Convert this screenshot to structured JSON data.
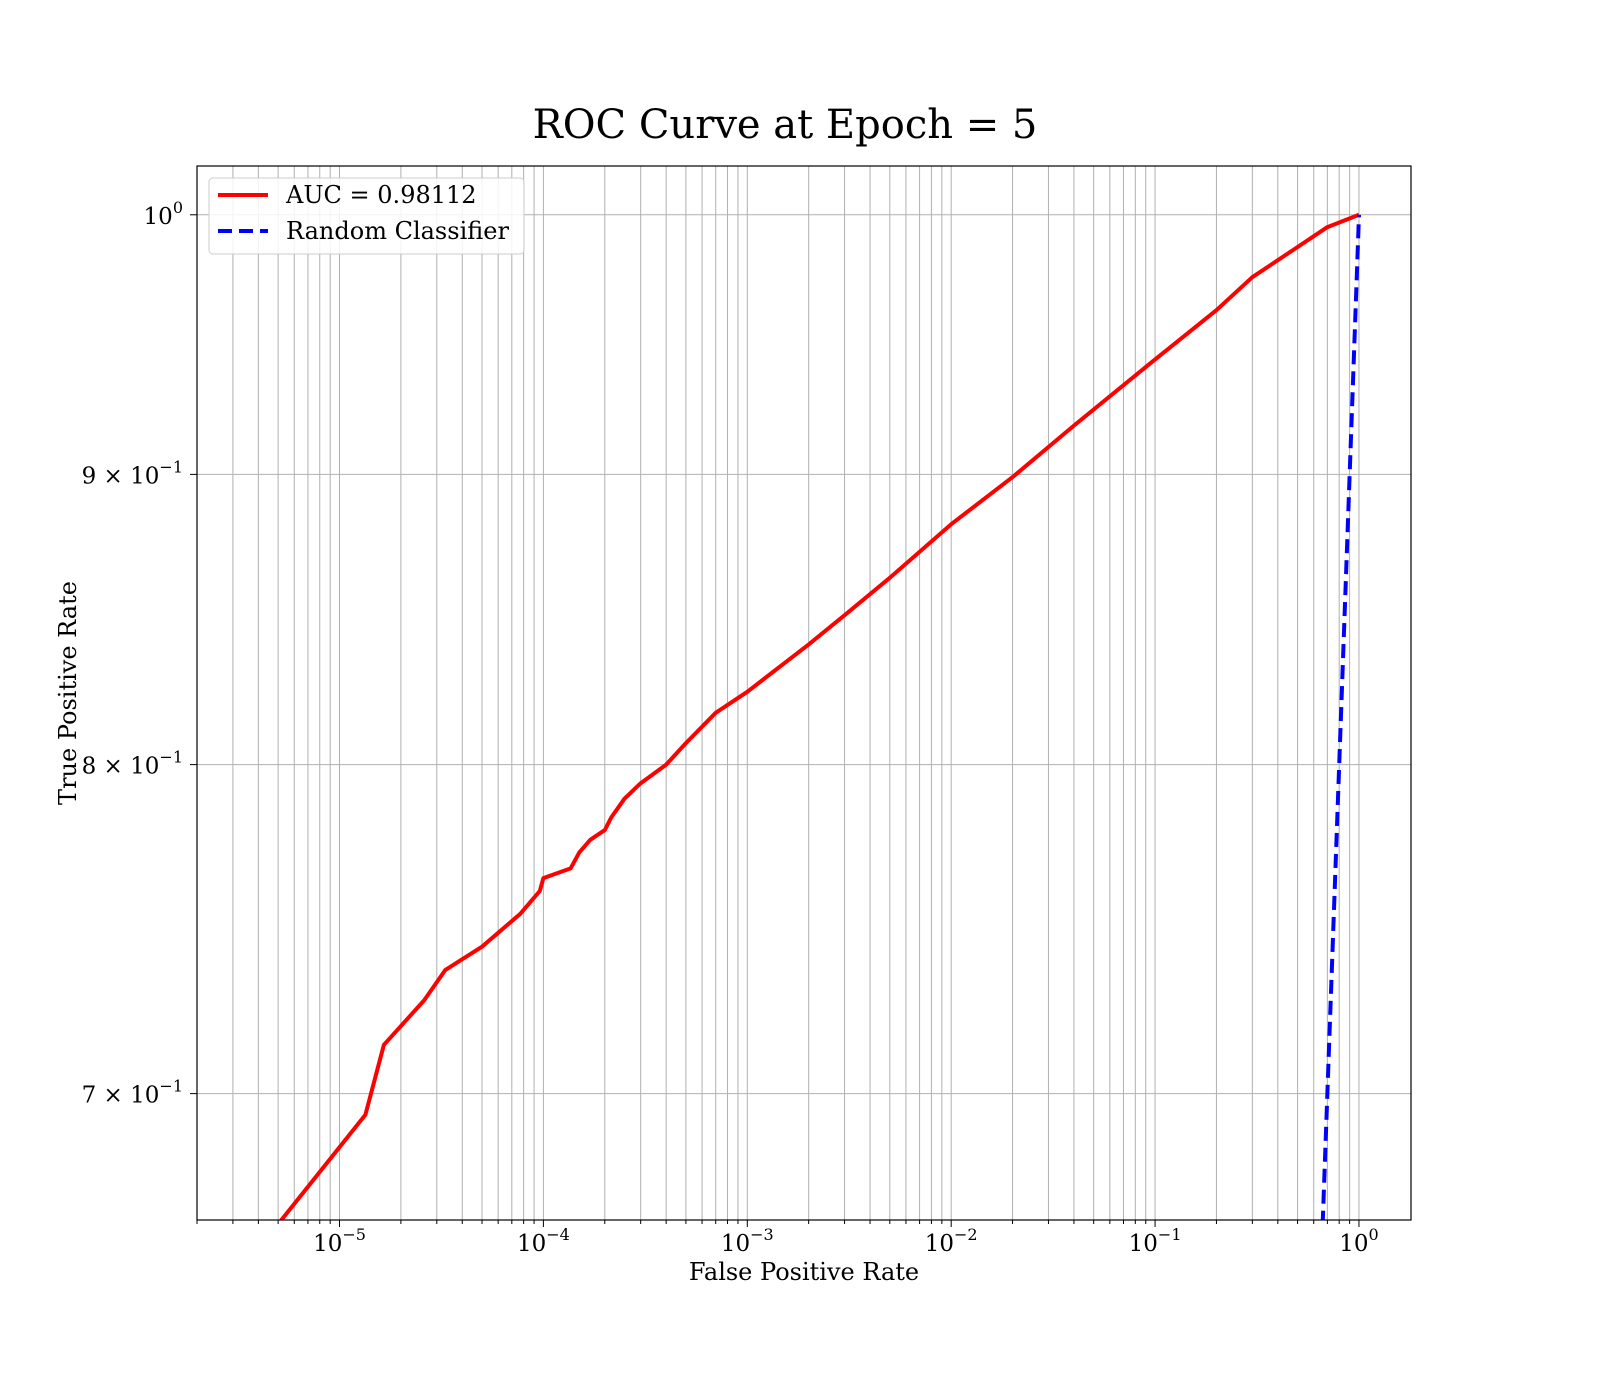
{
  "chart_data": {
    "type": "line",
    "title": "ROC Curve at Epoch = 5",
    "xlabel": "False Positive Rate",
    "ylabel": "True Positive Rate",
    "xscale": "log",
    "yscale": "log",
    "xlim": [
      2e-06,
      1.8
    ],
    "ylim": [
      0.665,
      1.02
    ],
    "grid": "both-major-minor-x",
    "legend": "upper-left",
    "x_ticks": [
      {
        "value": 1e-05,
        "base": "10",
        "exp": "−5"
      },
      {
        "value": 0.0001,
        "base": "10",
        "exp": "−4"
      },
      {
        "value": 0.001,
        "base": "10",
        "exp": "−3"
      },
      {
        "value": 0.01,
        "base": "10",
        "exp": "−2"
      },
      {
        "value": 0.1,
        "base": "10",
        "exp": "−1"
      },
      {
        "value": 1,
        "base": "10",
        "exp": "0"
      }
    ],
    "y_ticks": [
      {
        "value": 0.7,
        "mant": "7 × 10",
        "exp": "−1"
      },
      {
        "value": 0.8,
        "mant": "8 × 10",
        "exp": "−1"
      },
      {
        "value": 0.9,
        "mant": "9 × 10",
        "exp": "−1"
      },
      {
        "value": 1.0,
        "mant": "10",
        "exp": "0"
      }
    ],
    "series": [
      {
        "name": "AUC = 0.98112",
        "color": "#ff0000",
        "dash": "solid",
        "x": [
          3.3e-06,
          3.4e-06,
          1.34e-05,
          1.65e-05,
          2.6e-05,
          3.3e-05,
          5e-05,
          7.7e-05,
          9.6e-05,
          0.0001,
          0.000136,
          0.00015,
          0.00017,
          0.0002,
          0.000215,
          0.00025,
          0.0003,
          0.0004,
          0.0005,
          0.0007,
          0.001,
          0.002,
          0.003,
          0.005,
          0.01,
          0.02,
          0.04,
          0.1,
          0.2,
          0.3,
          0.5,
          0.7,
          1.0
        ],
        "y": [
          0.665,
          0.6525,
          0.694,
          0.714,
          0.727,
          0.736,
          0.743,
          0.753,
          0.76,
          0.764,
          0.767,
          0.772,
          0.776,
          0.779,
          0.783,
          0.789,
          0.794,
          0.8,
          0.807,
          0.817,
          0.824,
          0.84,
          0.85,
          0.863,
          0.882,
          0.899,
          0.918,
          0.943,
          0.962,
          0.975,
          0.987,
          0.995,
          1.0
        ]
      },
      {
        "name": "Random Classifier",
        "color": "#0000ff",
        "dash": "dashed",
        "x": [
          0.62,
          1.0
        ],
        "y": [
          0.62,
          1.0
        ]
      }
    ]
  }
}
